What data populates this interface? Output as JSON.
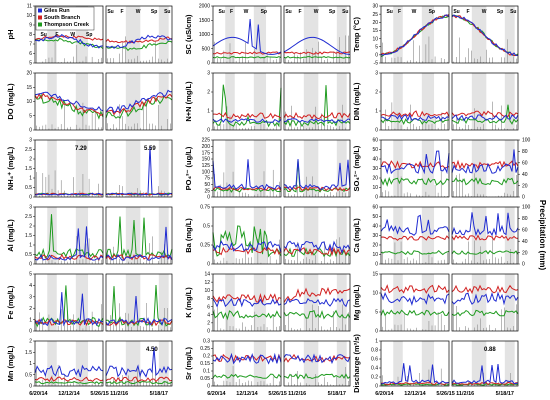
{
  "colors": {
    "giles_run": "#1f2bd1",
    "south_branch": "#d11f1f",
    "thompson_creek": "#1f9b1f",
    "precip": "#9a9a9a",
    "shade": "#e3e3e3"
  },
  "legend": {
    "items": [
      {
        "label": "Giles Run",
        "color": "#1f2bd1"
      },
      {
        "label": "South Branch",
        "color": "#d11f1f"
      },
      {
        "label": "Thompson Creek",
        "color": "#1f9b1f"
      }
    ]
  },
  "right_axis_label": "Precipitation (mm)",
  "right_ticks": [
    "0",
    "20",
    "40",
    "60",
    "80",
    "100"
  ],
  "x_ticks_left": [
    "6/20/14",
    "12/12/14",
    "5/26/15"
  ],
  "x_ticks_right": [
    "11/2/16",
    "5/18/17"
  ],
  "season_labels_top": [
    "Su",
    "F",
    "W",
    "Sp"
  ],
  "season_labels_top_right": [
    "Su",
    "F",
    "W",
    "Sp",
    "Su"
  ],
  "chart_data": [
    {
      "type": "line",
      "ylabel": "pH",
      "ylim": [
        5,
        11
      ],
      "yticks": [
        "5",
        "6",
        "7",
        "8",
        "9",
        "10",
        "11"
      ],
      "col": 0,
      "row": 0
    },
    {
      "type": "line",
      "ylabel": "SC (uS/cm)",
      "ylim": [
        0,
        2000
      ],
      "yticks": [
        "0",
        "500",
        "1000",
        "1500",
        "2000"
      ],
      "col": 1,
      "row": 0
    },
    {
      "type": "line",
      "ylabel": "Temp (°C)",
      "ylim": [
        -5,
        30
      ],
      "yticks": [
        "-5",
        "0",
        "5",
        "10",
        "15",
        "20",
        "25",
        "30"
      ],
      "col": 2,
      "row": 0
    },
    {
      "type": "line",
      "ylabel": "DO (mg/L)",
      "ylim": [
        0,
        20
      ],
      "yticks": [
        "0",
        "5",
        "10",
        "15",
        "20"
      ],
      "col": 0,
      "row": 1
    },
    {
      "type": "line",
      "ylabel": "N+N (mg/L)",
      "ylim": [
        0,
        3
      ],
      "yticks": [
        "0",
        "1",
        "2",
        "3"
      ],
      "col": 1,
      "row": 1
    },
    {
      "type": "line",
      "ylabel": "DIN (mg/L)",
      "ylim": [
        0,
        3
      ],
      "yticks": [
        "0",
        "1",
        "2",
        "3"
      ],
      "col": 2,
      "row": 1
    },
    {
      "type": "line",
      "ylabel": "NH₄⁺ (mg/L)",
      "ylim": [
        0,
        3
      ],
      "yticks": [
        "0",
        "0.5",
        "1",
        "1.5",
        "2",
        "2.5",
        "3"
      ],
      "col": 0,
      "row": 2,
      "annotations": [
        "7.29",
        "5.59"
      ]
    },
    {
      "type": "line",
      "ylabel": "PO₄³⁻ (ug/L)",
      "ylim": [
        0,
        225
      ],
      "yticks": [
        "0",
        "25",
        "50",
        "75",
        "100",
        "125",
        "150",
        "175",
        "200",
        "225"
      ],
      "col": 1,
      "row": 2
    },
    {
      "type": "line",
      "ylabel": "SO₄²⁻ (mg/L)",
      "ylim": [
        0,
        60
      ],
      "yticks": [
        "0",
        "10",
        "20",
        "30",
        "40",
        "50",
        "60"
      ],
      "col": 2,
      "row": 2
    },
    {
      "type": "line",
      "ylabel": "Al (mg/L)",
      "ylim": [
        0,
        3
      ],
      "yticks": [
        "0",
        "0.5",
        "1",
        "1.5",
        "2",
        "2.5",
        "3"
      ],
      "col": 0,
      "row": 3
    },
    {
      "type": "line",
      "ylabel": "Ba (mg/L)",
      "ylim": [
        0,
        0.75
      ],
      "yticks": [
        "0",
        "0.25",
        "0.5",
        "0.75"
      ],
      "col": 1,
      "row": 3
    },
    {
      "type": "line",
      "ylabel": "Ca (mg/L)",
      "ylim": [
        0,
        60
      ],
      "yticks": [
        "0",
        "10",
        "20",
        "30",
        "40",
        "50",
        "60"
      ],
      "col": 2,
      "row": 3
    },
    {
      "type": "line",
      "ylabel": "Fe (mg/L)",
      "ylim": [
        0,
        5
      ],
      "yticks": [
        "0",
        "1",
        "2",
        "3",
        "4",
        "5"
      ],
      "col": 0,
      "row": 4
    },
    {
      "type": "line",
      "ylabel": "K (mg/L)",
      "ylim": [
        0,
        14
      ],
      "yticks": [
        "0",
        "2",
        "4",
        "6",
        "8",
        "10",
        "12",
        "14"
      ],
      "col": 1,
      "row": 4
    },
    {
      "type": "line",
      "ylabel": "Mg (mg/L)",
      "ylim": [
        0,
        15
      ],
      "yticks": [
        "0",
        "5",
        "10",
        "15"
      ],
      "col": 2,
      "row": 4
    },
    {
      "type": "line",
      "ylabel": "Mn (mg/L)",
      "ylim": [
        0,
        2
      ],
      "yticks": [
        "0",
        "0.5",
        "1",
        "1.5",
        "2"
      ],
      "col": 0,
      "row": 5,
      "annotations": [
        "4.50"
      ]
    },
    {
      "type": "line",
      "ylabel": "Sr (mg/L)",
      "ylim": [
        0,
        0.3
      ],
      "yticks": [
        "0",
        "0.05",
        "0.1",
        "0.15",
        "0.2",
        "0.25",
        "0.3"
      ],
      "col": 1,
      "row": 5
    },
    {
      "type": "line",
      "ylabel": "Discharge (m³/s)",
      "ylim": [
        0,
        1
      ],
      "yticks": [
        "0",
        "0.2",
        "0.4",
        "0.6",
        "0.8",
        "1"
      ],
      "col": 2,
      "row": 5,
      "annotations": [
        "0.88"
      ]
    }
  ]
}
